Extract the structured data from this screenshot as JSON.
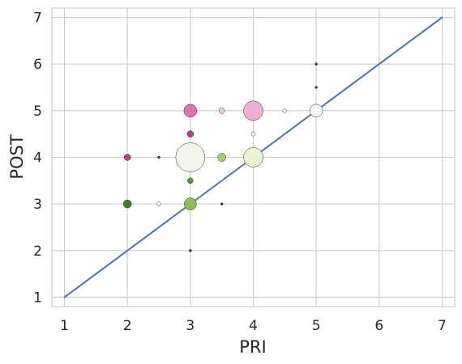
{
  "chart_data": {
    "type": "scatter",
    "title": "",
    "xlabel": "PRI",
    "ylabel": "POST",
    "xlim": [
      0.8,
      7.2
    ],
    "ylim": [
      0.8,
      7.2
    ],
    "xticks": [
      1,
      2,
      3,
      4,
      5,
      6,
      7
    ],
    "yticks": [
      1,
      2,
      3,
      4,
      5,
      6,
      7
    ],
    "grid": true,
    "reference_line": {
      "x": [
        1,
        7
      ],
      "y": [
        1,
        7
      ],
      "color": "#4c72b0"
    },
    "points": [
      {
        "x": 3.0,
        "y": 4.0,
        "size": 36,
        "color": "#f1f6e8"
      },
      {
        "x": 4.0,
        "y": 5.0,
        "size": 24,
        "color": "#efaed6"
      },
      {
        "x": 4.0,
        "y": 4.0,
        "size": 24,
        "color": "#e8f5d0"
      },
      {
        "x": 3.0,
        "y": 5.0,
        "size": 16,
        "color": "#dc72b2"
      },
      {
        "x": 5.0,
        "y": 5.0,
        "size": 16,
        "color": "#fafbf7"
      },
      {
        "x": 3.0,
        "y": 3.0,
        "size": 15,
        "color": "#8cc255"
      },
      {
        "x": 2.0,
        "y": 3.0,
        "size": 10,
        "color": "#3e7d21"
      },
      {
        "x": 3.5,
        "y": 4.0,
        "size": 10,
        "color": "#9fd36a"
      },
      {
        "x": 2.0,
        "y": 4.0,
        "size": 8,
        "color": "#c4378e"
      },
      {
        "x": 3.0,
        "y": 4.5,
        "size": 8,
        "color": "#c4378e"
      },
      {
        "x": 3.5,
        "y": 5.0,
        "size": 7,
        "color": "#f6c9e4"
      },
      {
        "x": 3.0,
        "y": 3.5,
        "size": 7,
        "color": "#5a9a30"
      },
      {
        "x": 2.5,
        "y": 3.0,
        "size": 5,
        "color": "#ffffff"
      },
      {
        "x": 4.5,
        "y": 5.0,
        "size": 5,
        "color": "#ffffff"
      },
      {
        "x": 4.0,
        "y": 4.5,
        "size": 5,
        "color": "#ffffff"
      },
      {
        "x": 2.5,
        "y": 4.0,
        "size": 3,
        "color": "#7a1a56"
      },
      {
        "x": 3.5,
        "y": 3.0,
        "size": 3,
        "color": "#1b4d10"
      },
      {
        "x": 3.0,
        "y": 2.0,
        "size": 3,
        "color": "#1b4d10"
      },
      {
        "x": 5.0,
        "y": 5.5,
        "size": 3,
        "color": "#7a1a56"
      },
      {
        "x": 5.0,
        "y": 6.0,
        "size": 3,
        "color": "#8e0b52"
      }
    ]
  }
}
